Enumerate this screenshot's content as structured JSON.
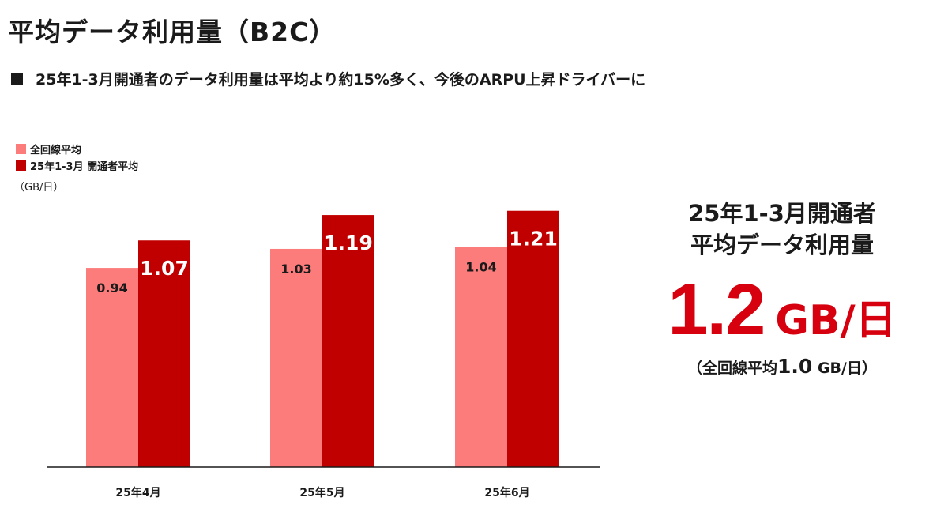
{
  "page": {
    "title": "平均データ利用量（B2C）",
    "subtitle": "25年1-3月開通者のデータ利用量は平均より約15%多く、今後のARPU上昇ドライバーに"
  },
  "legend": {
    "items": [
      {
        "label": "全回線平均",
        "color": "#fc7c7c"
      },
      {
        "label": "25年1-3月 開通者平均",
        "color": "#c00000"
      }
    ],
    "unit": "（GB/日）"
  },
  "chart_data": {
    "type": "bar",
    "categories": [
      "25年4月",
      "25年5月",
      "25年6月"
    ],
    "series": [
      {
        "name": "全回線平均",
        "values": [
          0.94,
          1.03,
          1.04
        ],
        "color": "#fc7c7c"
      },
      {
        "name": "25年1-3月 開通者平均",
        "values": [
          1.07,
          1.19,
          1.21
        ],
        "color": "#c00000"
      }
    ],
    "data_labels": [
      [
        "0.94",
        "1.03",
        "1.04"
      ],
      [
        "1.07",
        "1.19",
        "1.21"
      ]
    ],
    "ylabel": "（GB/日）",
    "ylim": [
      0,
      1.3
    ],
    "grid": false,
    "legend_position": "top-left"
  },
  "summary": {
    "heading_line1": "25年1-3月開通者",
    "heading_line2": "平均データ利用量",
    "value": "1.2",
    "unit": "GB/日",
    "note_prefix": "（全回線平均",
    "note_value": "1.0",
    "note_suffix": " GB/日）",
    "accent_color": "#d7000f"
  }
}
